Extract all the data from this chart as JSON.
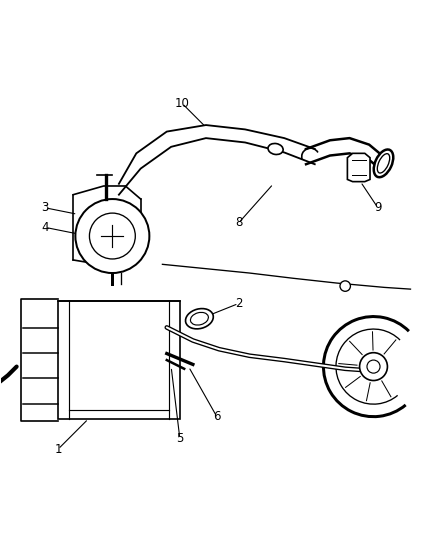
{
  "bg_color": "#ffffff",
  "line_color": "#000000",
  "line_width": 1.2,
  "fig_width": 4.38,
  "fig_height": 5.33,
  "dpi": 100,
  "label_fontsize": 8.5
}
